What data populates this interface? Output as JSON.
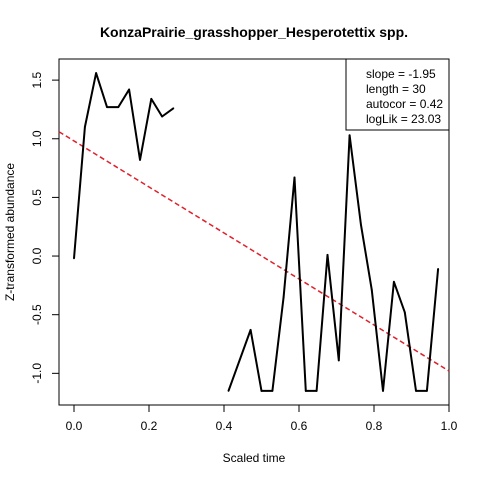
{
  "chart_data": {
    "type": "line",
    "title": "KonzaPrairie_grasshopper_Hesperotettix spp.",
    "xlabel": "Scaled time",
    "ylabel": "Z-transformed abundance",
    "xlim": [
      -0.04,
      1.0
    ],
    "ylim": [
      -1.27,
      1.68
    ],
    "x_ticks": [
      0.0,
      0.2,
      0.4,
      0.6,
      0.8,
      1.0
    ],
    "x_tick_labels": [
      "0.0",
      "0.2",
      "0.4",
      "0.6",
      "0.8",
      "1.0"
    ],
    "y_ticks": [
      -1.0,
      -0.5,
      0.0,
      0.5,
      1.0,
      1.5
    ],
    "y_tick_labels": [
      "-1.0",
      "-0.5",
      "0.0",
      "0.5",
      "1.0",
      "1.5"
    ],
    "series_segments": [
      {
        "points": [
          [
            0.0,
            -0.02
          ],
          [
            0.029,
            1.1
          ],
          [
            0.059,
            1.56
          ],
          [
            0.088,
            1.27
          ],
          [
            0.118,
            1.27
          ],
          [
            0.147,
            1.42
          ],
          [
            0.176,
            0.82
          ],
          [
            0.206,
            1.34
          ],
          [
            0.235,
            1.19
          ],
          [
            0.265,
            1.26
          ]
        ]
      },
      {
        "points": [
          [
            0.412,
            -1.15
          ],
          [
            0.471,
            -0.63
          ],
          [
            0.5,
            -1.15
          ],
          [
            0.529,
            -1.15
          ],
          [
            0.559,
            -0.35
          ],
          [
            0.588,
            0.67
          ],
          [
            0.618,
            -1.15
          ],
          [
            0.647,
            -1.15
          ],
          [
            0.676,
            0.01
          ],
          [
            0.706,
            -0.89
          ],
          [
            0.735,
            1.03
          ],
          [
            0.765,
            0.27
          ],
          [
            0.794,
            -0.29
          ],
          [
            0.824,
            -1.15
          ],
          [
            0.853,
            -0.22
          ],
          [
            0.882,
            -0.48
          ],
          [
            0.912,
            -1.15
          ],
          [
            0.941,
            -1.15
          ],
          [
            0.971,
            -0.11
          ]
        ]
      }
    ],
    "trend_line": {
      "color": "#e0202a",
      "style": "dashed",
      "points": [
        [
          -0.04,
          1.06
        ],
        [
          1.0,
          -0.98
        ]
      ]
    },
    "legend": {
      "placement": "top-right",
      "entries": [
        "slope = -1.95",
        "length = 30",
        "autocor = 0.42",
        "logLik = 23.03"
      ]
    },
    "grid": false
  }
}
